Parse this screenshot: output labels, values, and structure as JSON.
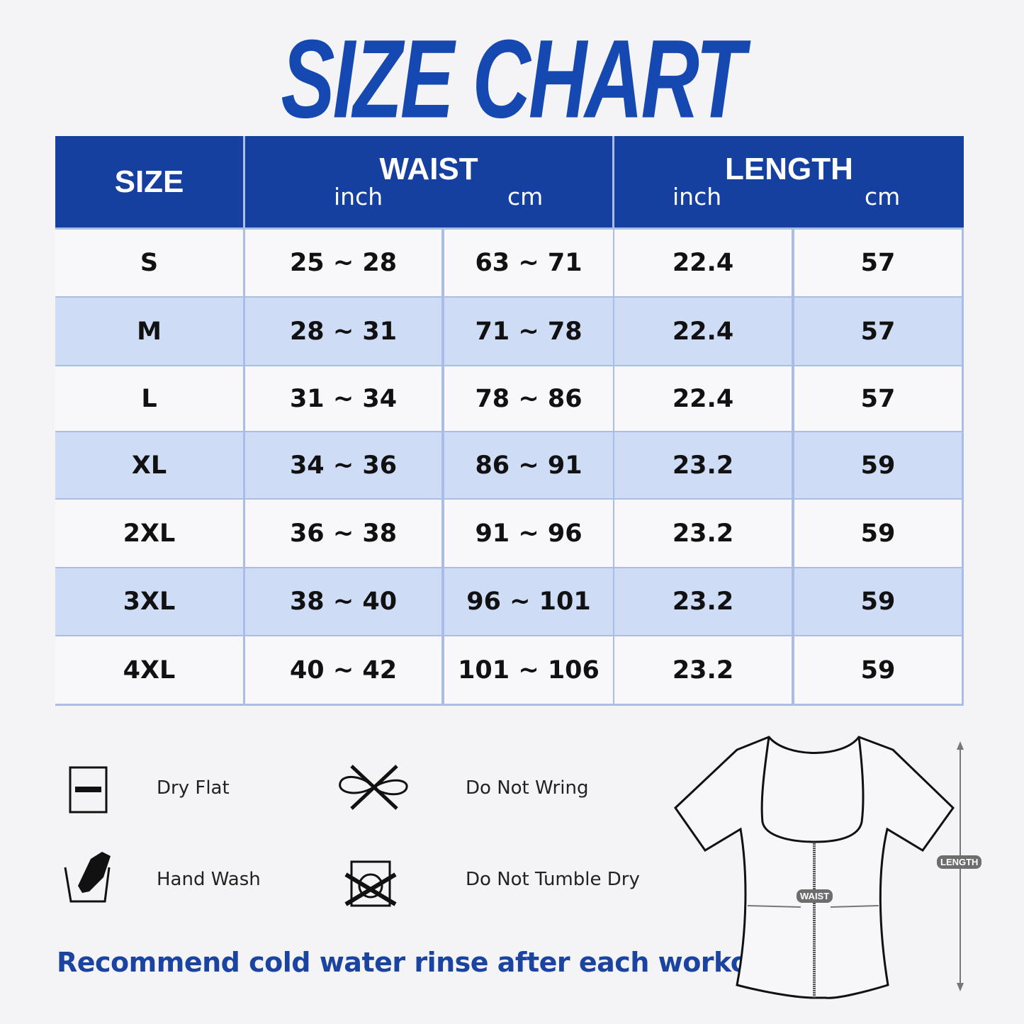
{
  "title": "SIZE CHART",
  "colors": {
    "header": "#1640a0",
    "title": "#1548b0",
    "stripe": "#cfdcf5",
    "border": "#a9bde6"
  },
  "table": {
    "headers": {
      "size": "SIZE",
      "waist": "WAIST",
      "length": "LENGTH",
      "inch": "inch",
      "cm": "cm"
    },
    "rows": [
      {
        "size": "S",
        "waist_inch": "25 ~ 28",
        "waist_cm": "63 ~ 71",
        "length_inch": "22.4",
        "length_cm": "57"
      },
      {
        "size": "M",
        "waist_inch": "28 ~ 31",
        "waist_cm": "71 ~ 78",
        "length_inch": "22.4",
        "length_cm": "57"
      },
      {
        "size": "L",
        "waist_inch": "31 ~ 34",
        "waist_cm": "78 ~ 86",
        "length_inch": "22.4",
        "length_cm": "57"
      },
      {
        "size": "XL",
        "waist_inch": "34 ~ 36",
        "waist_cm": "86 ~ 91",
        "length_inch": "23.2",
        "length_cm": "59"
      },
      {
        "size": "2XL",
        "waist_inch": "36 ~ 38",
        "waist_cm": "91 ~ 96",
        "length_inch": "23.2",
        "length_cm": "59"
      },
      {
        "size": "3XL",
        "waist_inch": "38 ~ 40",
        "waist_cm": "96 ~ 101",
        "length_inch": "23.2",
        "length_cm": "59"
      },
      {
        "size": "4XL",
        "waist_inch": "40 ~ 42",
        "waist_cm": "101 ~ 106",
        "length_inch": "23.2",
        "length_cm": "59"
      }
    ]
  },
  "care": [
    {
      "label": "Dry Flat",
      "icon": "dry-flat-icon"
    },
    {
      "label": "Do Not Wring",
      "icon": "do-not-wring-icon"
    },
    {
      "label": "Hand Wash",
      "icon": "hand-wash-icon"
    },
    {
      "label": "Do Not Tumble Dry",
      "icon": "do-not-tumble-dry-icon"
    }
  ],
  "note": "Recommend cold water rinse after each workout.",
  "diagram": {
    "waist_tag": "WAIST",
    "length_tag": "LENGTH"
  }
}
